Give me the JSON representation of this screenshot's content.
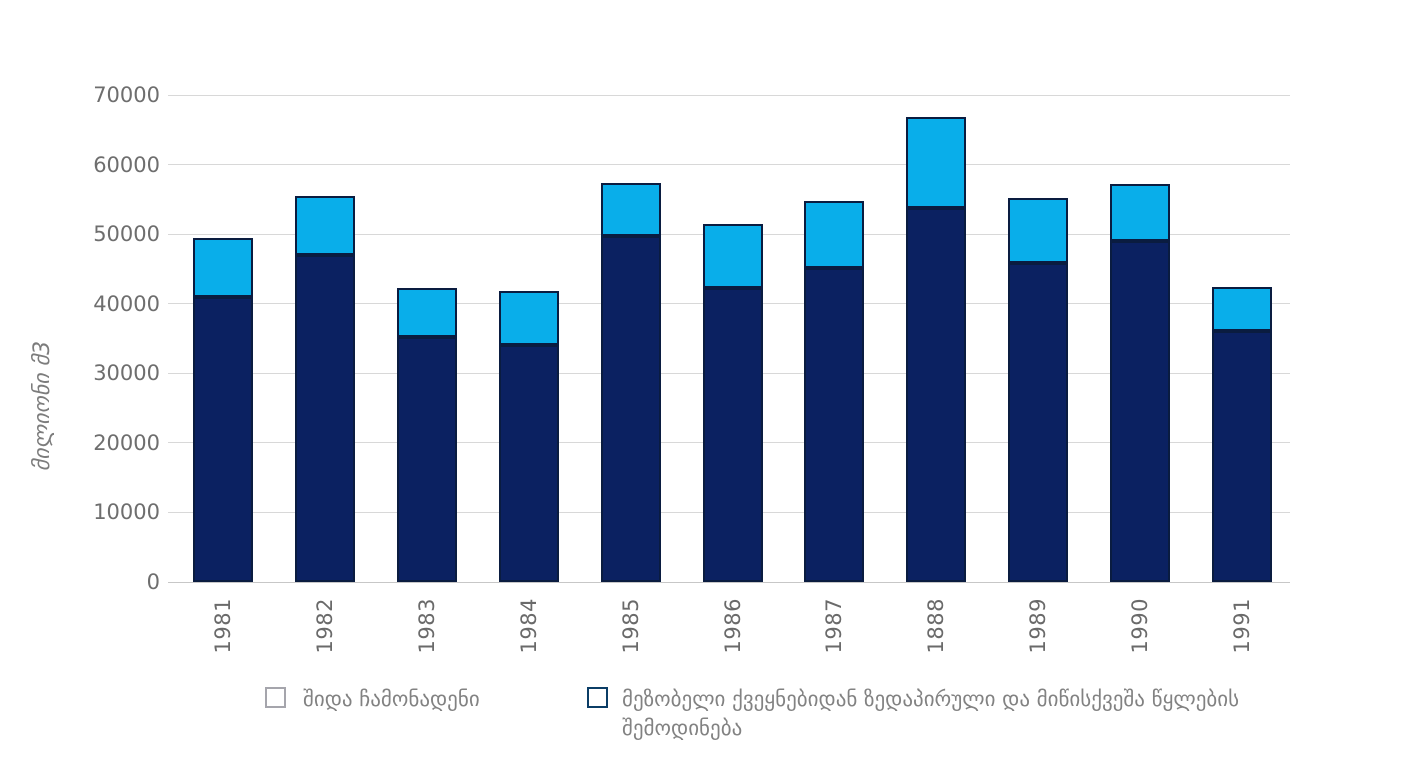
{
  "chart_data": {
    "type": "bar",
    "stacked": true,
    "title": "",
    "ylabel": "მილიონი მ3",
    "xlabel": "",
    "categories": [
      "1981",
      "1982",
      "1983",
      "1984",
      "1985",
      "1986",
      "1987",
      "1888",
      "1989",
      "1990",
      "1991"
    ],
    "series": [
      {
        "name": "შიდა ჩამონადენი",
        "color": "#0b2161",
        "values": [
          41000,
          47000,
          35200,
          34100,
          49800,
          42300,
          45100,
          53800,
          45800,
          49000,
          36100
        ]
      },
      {
        "name": "მეზობელი ქვეყნებიდან ზედაპირული და მიწისქვეშა წყლების შემოდინება",
        "color": "#09aeea",
        "values": [
          8400,
          8500,
          7000,
          7700,
          7600,
          9100,
          9700,
          13000,
          9400,
          8200,
          6300
        ]
      }
    ],
    "totals": [
      49400,
      55500,
      42200,
      41800,
      57400,
      51400,
      54800,
      66800,
      55200,
      57200,
      42400
    ],
    "ylim": [
      0,
      70000
    ],
    "ytick_step": 10000,
    "yticks": [
      "0",
      "10000",
      "20000",
      "30000",
      "40000",
      "50000",
      "60000",
      "70000"
    ],
    "grid": true,
    "legend_position": "bottom"
  },
  "colors": {
    "series_dark": "#0b2161",
    "series_light": "#09aeea",
    "bar_border": "#0a1c40",
    "gridline": "#d8d8d8",
    "axis_line": "#c7c7c7",
    "tick_text": "#6e6e6e",
    "legend_text": "#828282",
    "background": "#ffffff"
  }
}
